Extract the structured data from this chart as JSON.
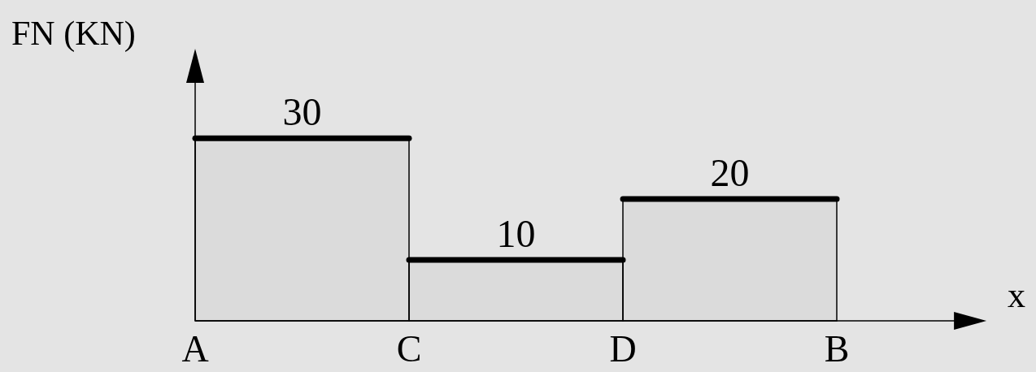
{
  "chart_data": {
    "type": "bar",
    "ylabel": "FN (KN)",
    "xlabel": "x",
    "categories": [
      null,
      null,
      null
    ],
    "values": [
      30,
      10,
      20
    ],
    "data_labels": true,
    "color": "#000000",
    "annotations": [
      "A",
      "C",
      "D",
      "B"
    ]
  }
}
